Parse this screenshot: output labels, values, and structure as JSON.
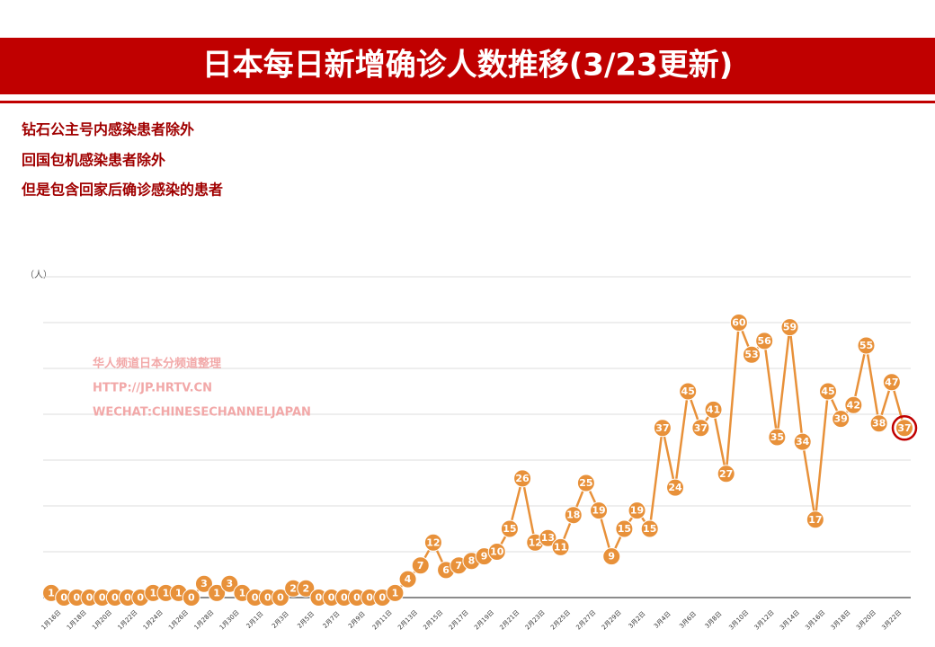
{
  "chart_data": {
    "type": "line",
    "title": "日本每日新增确诊人数推移(3/23更新)",
    "notes": [
      "钻石公主号内感染患者除外",
      "回国包机感染患者除外",
      "但是包含回家后确诊感染的患者"
    ],
    "watermark": [
      "华人频道日本分频道整理",
      "HTTP://JP.HRTV.CN",
      "WECHAT:CHINESECHANNELJAPAN"
    ],
    "y_unit": "（人）",
    "categories": [
      "1月16日",
      null,
      "1月18日",
      null,
      "1月20日",
      null,
      "1月22日",
      null,
      "1月24日",
      null,
      "1月26日",
      null,
      "1月28日",
      null,
      "1月30日",
      null,
      "2月1日",
      null,
      "2月3日",
      null,
      "2月5日",
      null,
      "2月7日",
      null,
      "2月9日",
      null,
      "2月11日",
      null,
      "2月13日",
      null,
      "2月15日",
      null,
      "2月17日",
      null,
      "2月19日",
      null,
      "2月21日",
      null,
      "2月23日",
      null,
      "2月25日",
      null,
      "2月27日",
      null,
      "2月29日",
      null,
      "3月2日",
      null,
      "3月4日",
      null,
      "3月6日",
      null,
      "3月8日",
      null,
      "3月10日",
      null,
      "3月12日",
      null,
      "3月14日",
      null,
      "3月16日",
      null,
      "3月18日",
      null,
      "3月20日",
      null,
      "3月22日",
      null
    ],
    "values": [
      1,
      0,
      0,
      0,
      0,
      0,
      0,
      0,
      1,
      1,
      1,
      0,
      3,
      1,
      3,
      1,
      0,
      0,
      0,
      2,
      2,
      0,
      0,
      0,
      0,
      0,
      0,
      1,
      4,
      7,
      12,
      6,
      7,
      8,
      9,
      10,
      15,
      26,
      12,
      13,
      11,
      18,
      25,
      19,
      9,
      15,
      19,
      15,
      37,
      24,
      45,
      37,
      41,
      27,
      60,
      53,
      56,
      35,
      59,
      34,
      17,
      45,
      39,
      42,
      55,
      38,
      47,
      37
    ],
    "color": "#e8913a",
    "ylim": [
      0,
      70
    ],
    "yticks": [
      0,
      10,
      20,
      30,
      40,
      50,
      60,
      70
    ],
    "grid": true
  }
}
